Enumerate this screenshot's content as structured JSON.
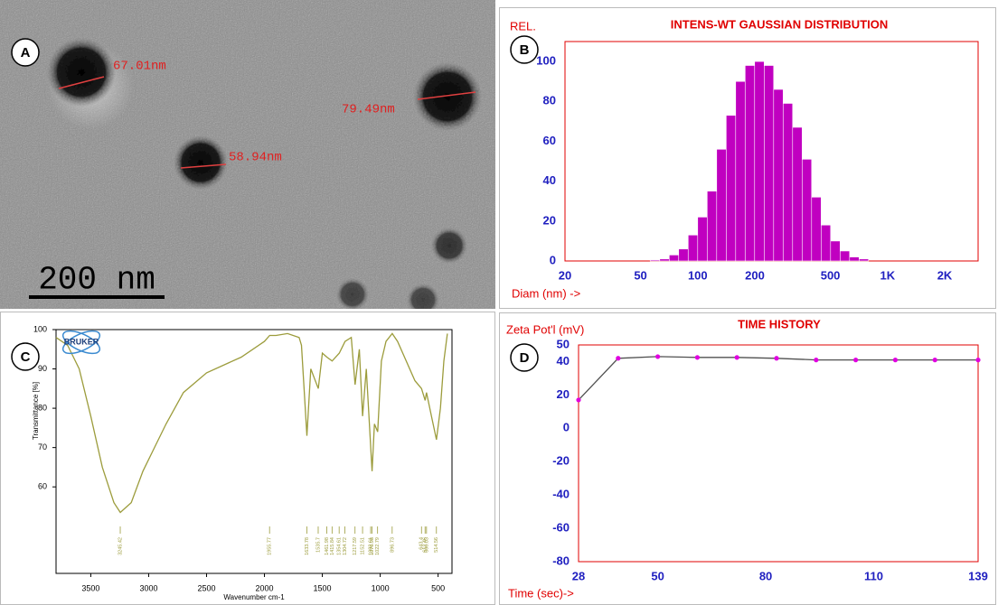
{
  "image": {
    "label": "A",
    "measurements": [
      "67.01nm",
      "58.94nm",
      "79.49nm"
    ],
    "scale_bar": "200 nm"
  },
  "chart_data": [
    {
      "type": "histogram",
      "label": "B",
      "title": "INTENS-WT GAUSSIAN DISTRIBUTION",
      "y_label": "REL.",
      "x_label": "Diam (nm) ->",
      "log_x": true,
      "bins": [
        56.2,
        63.1,
        70.8,
        79.4,
        89.1,
        100,
        112.2,
        125.9,
        141.3,
        158.5,
        177.8,
        199.5,
        223.9,
        251.2,
        281.8,
        316.2,
        354.8,
        398.1,
        446.7,
        501.2,
        562.3,
        631.0,
        707.9,
        794.3
      ],
      "values": [
        0.5,
        1,
        3,
        6,
        13,
        22,
        35,
        56,
        73,
        90,
        98,
        100,
        98,
        86,
        79,
        67,
        51,
        32,
        18,
        10,
        5,
        2,
        1
      ],
      "color": "#c000c0",
      "xlim": [
        20,
        3000
      ],
      "xticks": [
        20,
        50,
        100,
        200,
        500,
        {
          "value": 1000,
          "label": "1K"
        },
        {
          "value": 2000,
          "label": "2K"
        }
      ],
      "ylim": [
        0,
        110
      ],
      "yticks": [
        0,
        20,
        40,
        60,
        80,
        100
      ],
      "grid": true
    },
    {
      "type": "line",
      "label": "C",
      "logo": "BRUKER",
      "y_label": "Transmittance [%]",
      "x_label": "Wavenumber cm-1",
      "x": [
        3800,
        3700,
        3600,
        3500,
        3400,
        3300,
        3245,
        3150,
        3050,
        2950,
        2850,
        2700,
        2500,
        2200,
        2000,
        1955,
        1900,
        1800,
        1700,
        1680,
        1633,
        1600,
        1535,
        1500,
        1461,
        1415,
        1354,
        1304,
        1250,
        1217,
        1180,
        1152,
        1120,
        1082,
        1070,
        1050,
        1022,
        990,
        950,
        896,
        850,
        700,
        643,
        612,
        600,
        550,
        514,
        480,
        450,
        420
      ],
      "values": [
        98,
        96,
        90,
        78,
        65,
        56,
        53.5,
        56,
        64,
        70,
        76,
        84,
        89,
        93,
        97,
        98.5,
        98.5,
        99,
        98,
        96,
        73,
        90,
        85,
        94,
        93,
        92,
        94,
        97,
        98,
        86,
        95,
        78,
        90,
        70,
        64,
        76,
        74,
        92,
        97,
        99,
        97,
        87,
        85,
        82,
        84,
        77,
        72,
        80,
        92,
        99
      ],
      "color": "#9c9c3c",
      "xlim": [
        3800,
        380
      ],
      "xticks": [
        3500,
        3000,
        2500,
        2000,
        1500,
        1000,
        500
      ],
      "ylim": [
        38,
        100
      ],
      "yticks": [
        60,
        70,
        80,
        90,
        100
      ],
      "peaks": [
        3245.42,
        1955.77,
        1633.78,
        1535.7,
        1461.98,
        1415.84,
        1354.61,
        1304.72,
        1217.59,
        1152.51,
        1082.61,
        1070.98,
        1022.79,
        896.73,
        643.4,
        612.46,
        600.03,
        514.56
      ],
      "grid": false
    },
    {
      "type": "line",
      "label": "D",
      "title": "TIME HISTORY",
      "y_label": "Zeta Pot'l (mV)",
      "x_label": "Time (sec)->",
      "x": [
        28,
        39,
        50,
        61,
        72,
        83,
        94,
        105,
        116,
        127,
        139
      ],
      "values": [
        17,
        42,
        43,
        42.5,
        42.5,
        42,
        41,
        41,
        41,
        41,
        41
      ],
      "color": "#505050",
      "markers": true,
      "marker_color": "#e000e0",
      "xlim": [
        28,
        139
      ],
      "xticks": [
        28,
        50,
        80,
        110,
        139
      ],
      "ylim": [
        -80,
        50
      ],
      "yticks": [
        50,
        40,
        20,
        0,
        -20,
        -40,
        -60,
        -80
      ],
      "grid": true
    }
  ]
}
